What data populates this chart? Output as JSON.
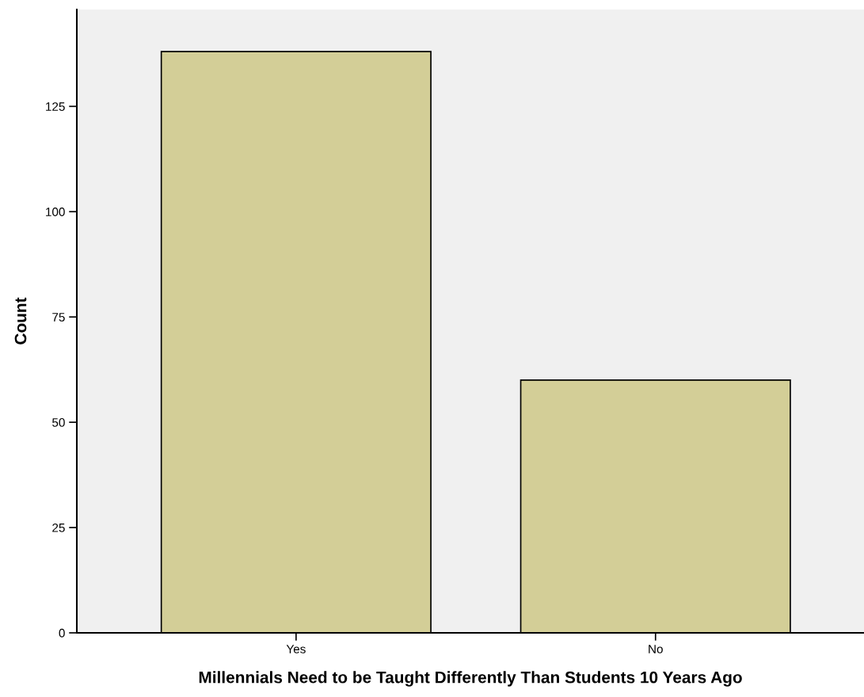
{
  "chart_data": {
    "type": "bar",
    "categories": [
      "Yes",
      "No"
    ],
    "values": [
      138,
      60
    ],
    "color": "#d3ce97",
    "xlabel": "Millennials Need to be Taught Differently Than Students 10 Years Ago",
    "ylabel": "Count",
    "ylim": [
      0,
      148
    ],
    "yticks": [
      0,
      25,
      50,
      75,
      100,
      125
    ],
    "grid": false,
    "legend": false
  }
}
